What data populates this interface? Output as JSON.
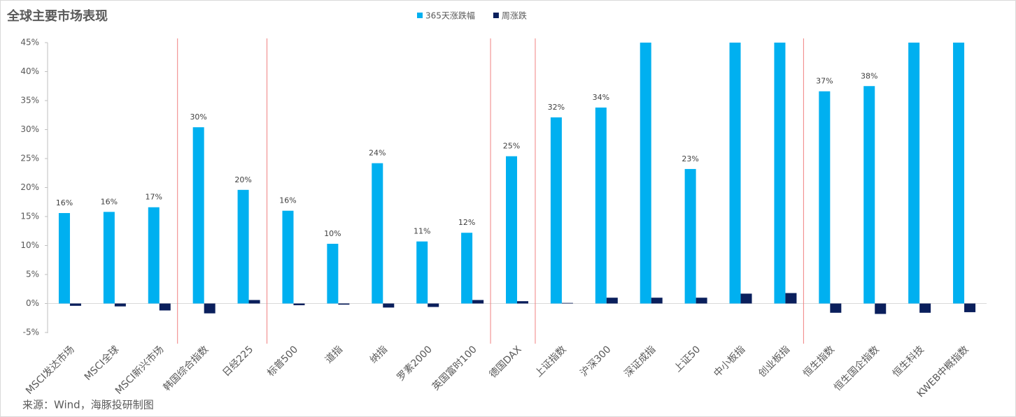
{
  "chart_data": {
    "type": "bar",
    "title": "全球主要市场表现",
    "source": "来源：Wind，海豚投研制图",
    "categories": [
      "MSCI发达市场",
      "MSCI全球",
      "MSCI新兴市场",
      "韩国综合指数",
      "日经225",
      "标普500",
      "道指",
      "纳指",
      "罗素2000",
      "英国富时100",
      "德国DAX",
      "上证指数",
      "沪深300",
      "深证成指",
      "上证50",
      "中小板指",
      "创业板指",
      "恒生指数",
      "恒生国企指数",
      "恒生科技",
      "KWEB中概指数"
    ],
    "series": [
      {
        "name": "365天涨跌幅",
        "color": "#00b0f0",
        "values": [
          15.6,
          15.8,
          16.6,
          30.4,
          19.6,
          16.0,
          10.3,
          24.2,
          10.7,
          12.2,
          25.4,
          32.1,
          33.8,
          45,
          23.2,
          45,
          45,
          36.6,
          37.5,
          45,
          45
        ],
        "value_labels": [
          "16%",
          "16%",
          "17%",
          "30%",
          "20%",
          "16%",
          "10%",
          "24%",
          "11%",
          "12%",
          "25%",
          "32%",
          "34%",
          null,
          "23%",
          null,
          null,
          "37%",
          "38%",
          null,
          null
        ]
      },
      {
        "name": "周涨跌",
        "color": "#0a1f5c",
        "values": [
          -0.4,
          -0.5,
          -1.2,
          -1.7,
          0.6,
          -0.3,
          -0.2,
          -0.7,
          -0.6,
          0.6,
          0.4,
          0.1,
          1.0,
          1.0,
          1.0,
          1.7,
          1.8,
          -1.6,
          -1.8,
          -1.6,
          -1.5
        ]
      }
    ],
    "ylim": [
      -5,
      45
    ],
    "yticks": [
      {
        "value": -5,
        "label": "-5%"
      },
      {
        "value": 0,
        "label": "0%"
      },
      {
        "value": 5,
        "label": "5%"
      },
      {
        "value": 10,
        "label": "10%"
      },
      {
        "value": 15,
        "label": "15%"
      },
      {
        "value": 20,
        "label": "20%"
      },
      {
        "value": 25,
        "label": "25%"
      },
      {
        "value": 30,
        "label": "30%"
      },
      {
        "value": 35,
        "label": "35%"
      },
      {
        "value": 40,
        "label": "40%"
      },
      {
        "value": 45,
        "label": "45%"
      }
    ],
    "legend": "top"
  }
}
